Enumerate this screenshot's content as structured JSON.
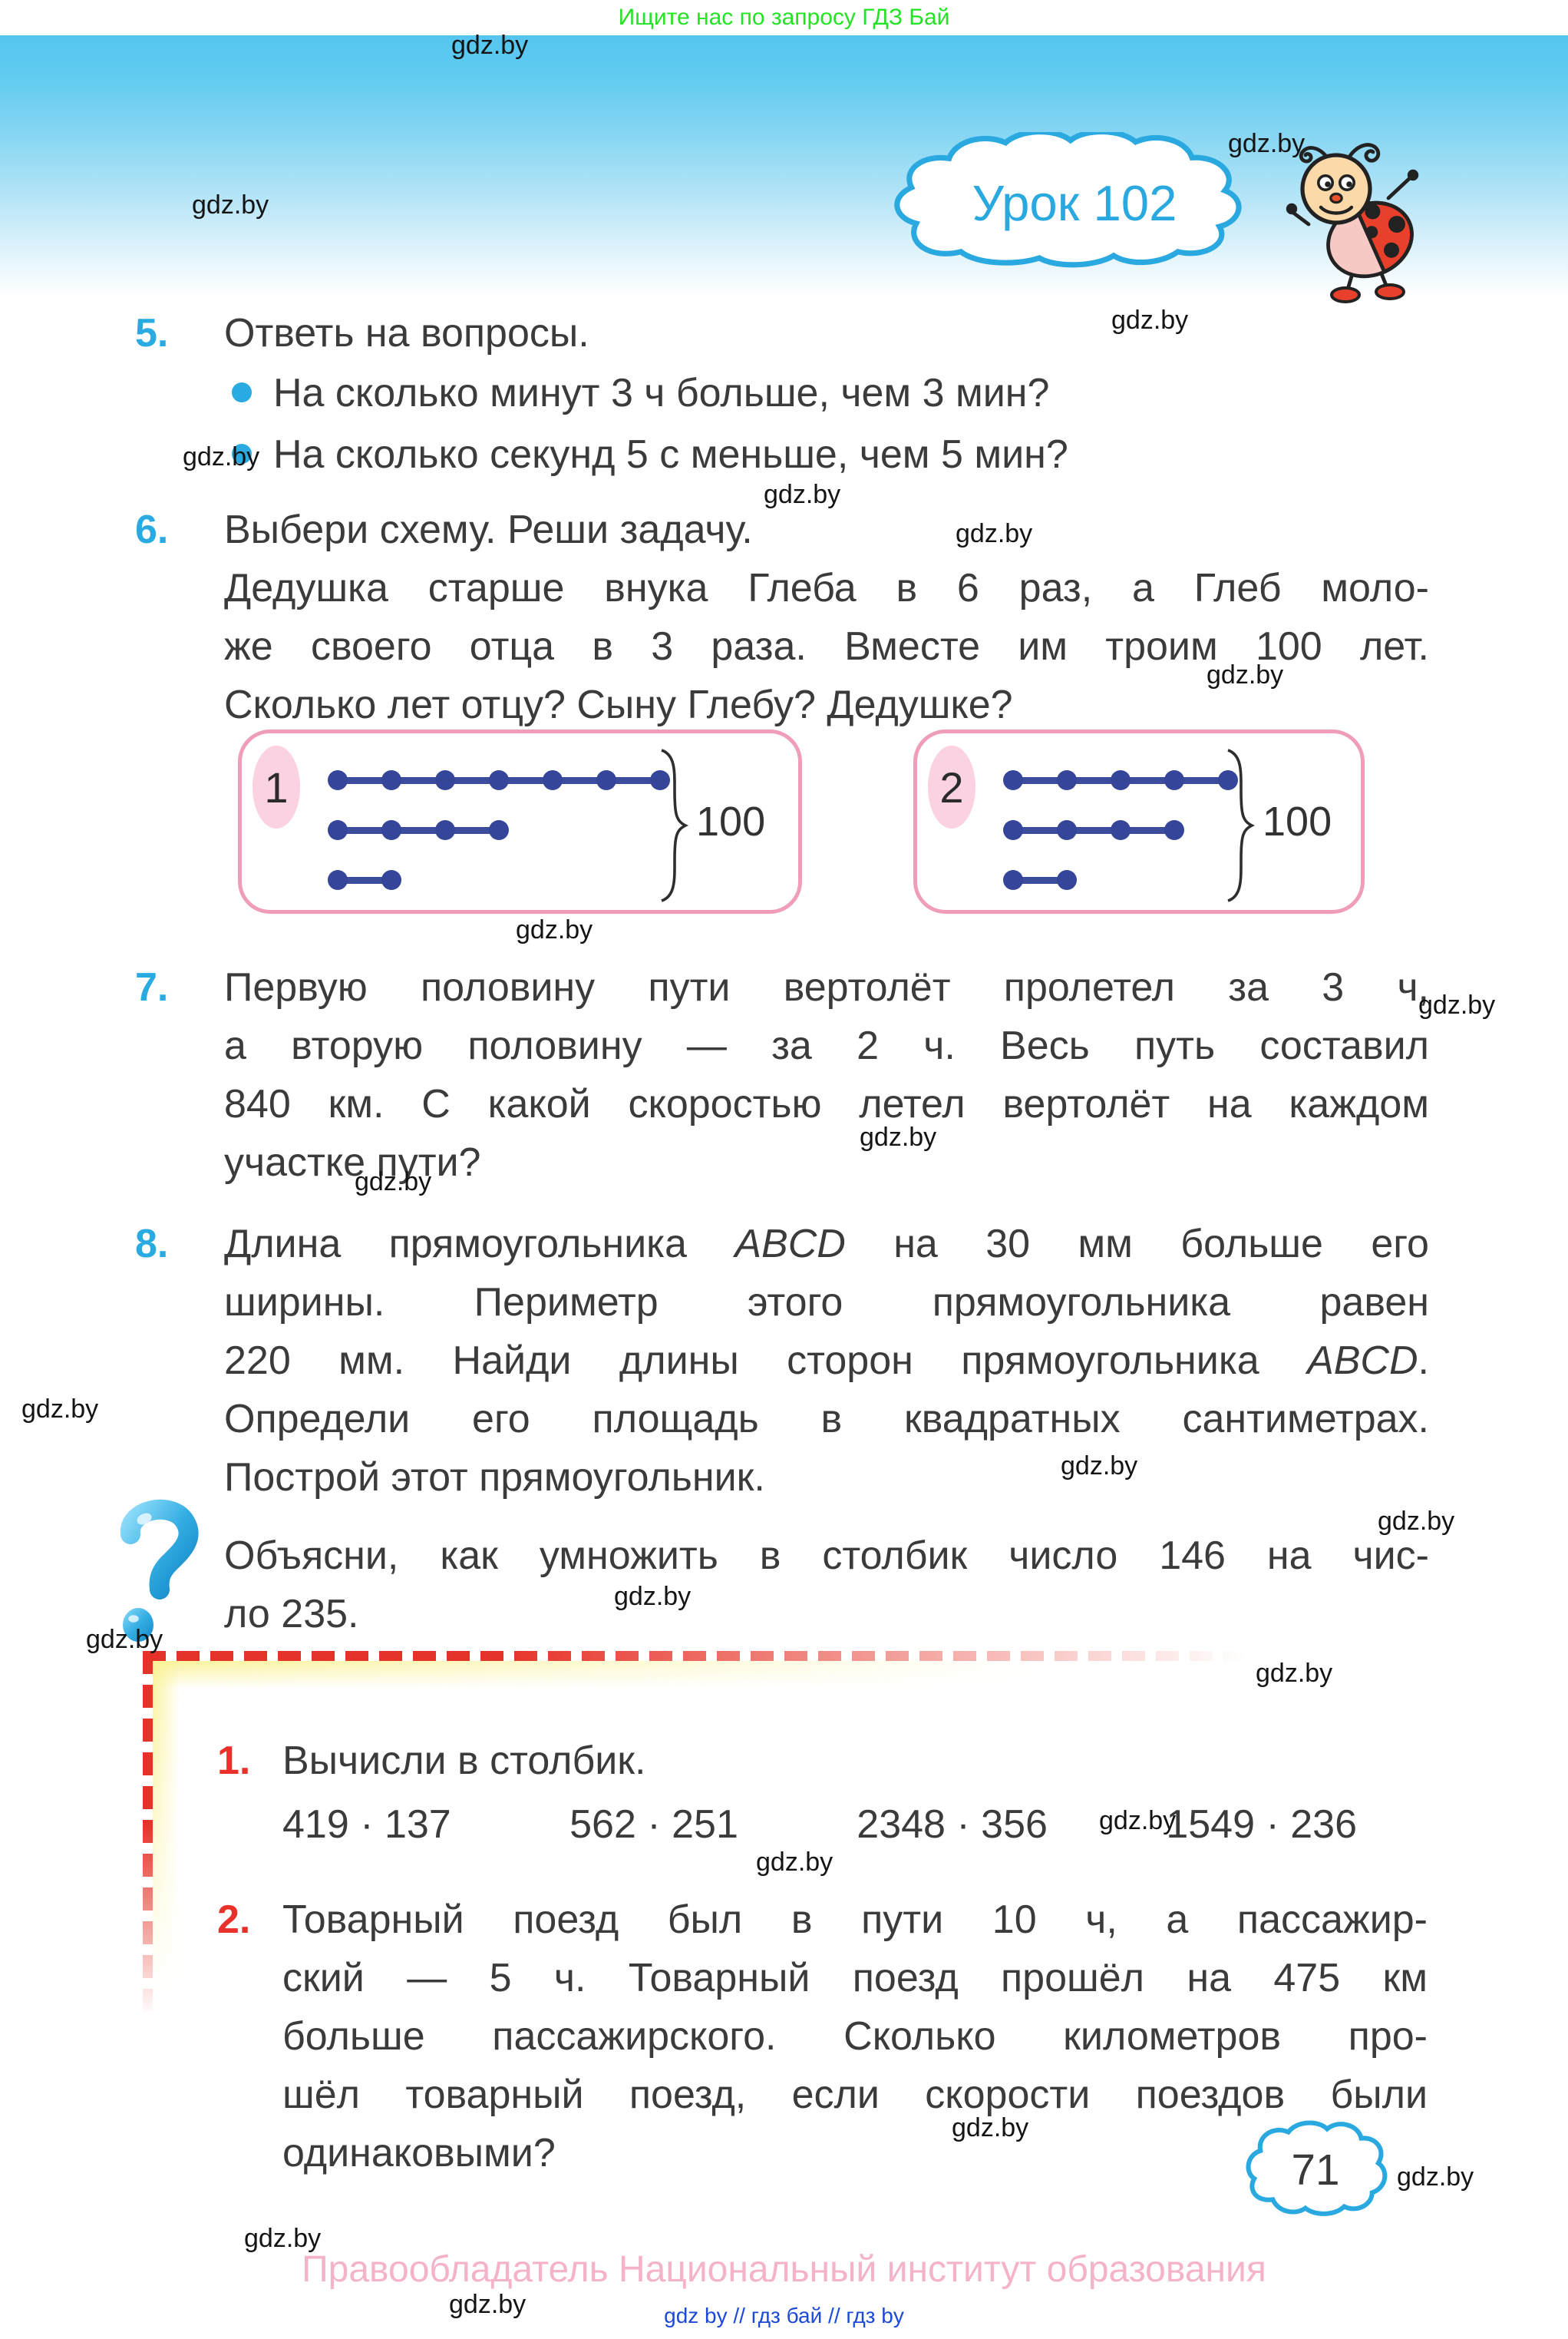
{
  "page": {
    "top_note": "Ищите нас по запросу ГДЗ Бай",
    "watermark": "gdz.by",
    "lesson_badge": "Урок 102",
    "page_number": "71",
    "copyright": "Правообладатель Национальный институт образования",
    "footer_links": "gdz by  //  гдз бай  //  гдз by"
  },
  "colors": {
    "accent_blue": "#29abe2",
    "accent_red": "#e8312a",
    "diagram_navy": "#3c4c9d",
    "box_border_pink": "#f09cbb",
    "footer_pink": "#f4b3c9",
    "note_green": "#24e324",
    "footer_link_blue": "#1d49d8"
  },
  "ex5": {
    "number": "5.",
    "title": "Ответь на вопросы.",
    "bullet1": "На сколько минут 3 ч больше, чем 3 мин?",
    "bullet2": "На сколько секунд 5 с меньше, чем 5 мин?"
  },
  "ex6": {
    "number": "6.",
    "title": "Выбери схему. Реши задачу.",
    "l1": "Дедушка старше внука Глеба в 6 раз, а Глеб моло-",
    "l2": "же своего отца в 3 раза. Вместе им троим 100 лет.",
    "l3": "Сколько лет отцу? Сыну Глебу? Дедушке?"
  },
  "diagrams": [
    {
      "label": "1",
      "rows": [
        6,
        3,
        1
      ],
      "value": "100"
    },
    {
      "label": "2",
      "rows": [
        4,
        3,
        1
      ],
      "value": "100"
    }
  ],
  "ex7": {
    "number": "7.",
    "l1": "Первую половину пути вертолёт пролетел за 3 ч,",
    "l2": "а вторую половину — за 2 ч. Весь путь составил",
    "l3": "840 км. С какой скоростью летел вертолёт на каждом",
    "l4": "участке пути?"
  },
  "ex8": {
    "number": "8.",
    "l1a": "Длина прямоугольника ",
    "l1b": "ABCD",
    "l1c": " на 30 мм больше его",
    "l2": "ширины. Периметр этого прямоугольника равен",
    "l3a": "220 мм. Найди длины сторон прямоугольника ",
    "l3b": "ABCD",
    "l3c": ".",
    "l4": "Определи его площадь в квадратных сантиметрах.",
    "l5": "Построй этот прямоугольник."
  },
  "question": {
    "l1": "Объясни, как умножить в столбик число 146 на чис-",
    "l2": "ло 235."
  },
  "box_ex1": {
    "number": "1.",
    "title": "Вычисли в столбик.",
    "problems": [
      "419 · 137",
      "562 · 251",
      "2348 · 356",
      "1549 · 236"
    ]
  },
  "box_ex2": {
    "number": "2.",
    "l1": "Товарный поезд был в пути 10 ч, а пассажир-",
    "l2": "ский — 5 ч. Товарный поезд прошёл на 475 км",
    "l3": "больше пассажирского. Сколько километров про-",
    "l4": "шёл товарный поезд, если скорости поездов были",
    "l5": "одинаковыми?"
  }
}
